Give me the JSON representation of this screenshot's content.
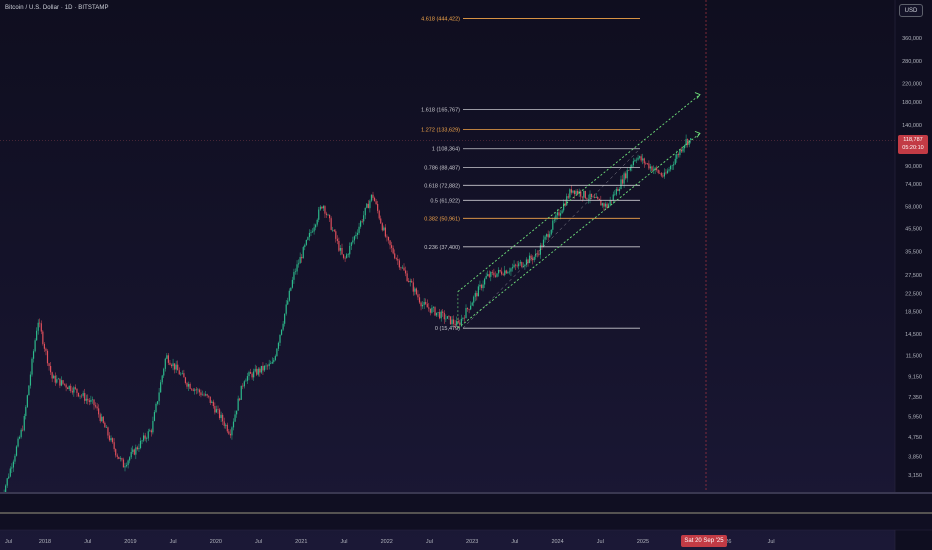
{
  "header": {
    "symbol_title": "Bitcoin / U.S. Dollar · 1D · BITSTAMP",
    "currency": "USD"
  },
  "price_badge": {
    "price": "118,787",
    "countdown": "05:20:10"
  },
  "date_badge": "Sat 20 Sep '25",
  "colors": {
    "fib_orange": "#f4a64a",
    "fib_white": "#c9c9cf",
    "channel_green": "#6fe07a",
    "candle_up": "#2dba8c",
    "candle_down": "#e0505c",
    "price_line": "#7a3a48"
  },
  "chart_data": {
    "type": "candlestick",
    "symbol": "Bitcoin / U.S. Dollar",
    "interval": "1D",
    "exchange": "BITSTAMP",
    "scale": "log",
    "y_ticks": [
      "360,000",
      "280,000",
      "220,000",
      "180,000",
      "140,000",
      "90,000",
      "74,000",
      "58,000",
      "45,500",
      "35,500",
      "27,500",
      "22,500",
      "18,500",
      "14,500",
      "11,500",
      "9,150",
      "7,350",
      "5,950",
      "4,750",
      "3,850",
      "3,150"
    ],
    "x_ticks": [
      "Jul",
      "2018",
      "Jul",
      "2019",
      "Jul",
      "2020",
      "Jul",
      "2021",
      "Jul",
      "2022",
      "Jul",
      "2023",
      "Jul",
      "2024",
      "Jul",
      "2025",
      "Jul",
      "26",
      "Jul"
    ],
    "last_price": 118787,
    "approx_closes": [
      [
        "2017-07",
        2500
      ],
      [
        "2017-10",
        5500
      ],
      [
        "2017-12",
        17000
      ],
      [
        "2018-02",
        9000
      ],
      [
        "2018-05",
        8000
      ],
      [
        "2018-08",
        6700
      ],
      [
        "2018-11",
        4000
      ],
      [
        "2018-12",
        3500
      ],
      [
        "2019-04",
        5200
      ],
      [
        "2019-06",
        11500
      ],
      [
        "2019-09",
        8500
      ],
      [
        "2019-12",
        7200
      ],
      [
        "2020-03",
        5000
      ],
      [
        "2020-05",
        9000
      ],
      [
        "2020-09",
        10500
      ],
      [
        "2020-12",
        28000
      ],
      [
        "2021-04",
        60000
      ],
      [
        "2021-07",
        32000
      ],
      [
        "2021-11",
        66000
      ],
      [
        "2022-01",
        40000
      ],
      [
        "2022-06",
        20000
      ],
      [
        "2022-11",
        16000
      ],
      [
        "2023-03",
        27000
      ],
      [
        "2023-07",
        30000
      ],
      [
        "2023-10",
        34000
      ],
      [
        "2024-03",
        70000
      ],
      [
        "2024-08",
        58000
      ],
      [
        "2024-12",
        100000
      ],
      [
        "2025-04",
        80000
      ],
      [
        "2025-07",
        118000
      ]
    ],
    "fib_levels": [
      {
        "label": "4.618 (444,422)",
        "price": 444422,
        "color": "orange"
      },
      {
        "label": "1.618 (165,767)",
        "price": 165767,
        "color": "white"
      },
      {
        "label": "1.272 (133,629)",
        "price": 133629,
        "color": "orange"
      },
      {
        "label": "1 (108,364)",
        "price": 108364,
        "color": "white"
      },
      {
        "label": "0.786 (88,487)",
        "price": 88487,
        "color": "white"
      },
      {
        "label": "0.618 (72,882)",
        "price": 72882,
        "color": "white"
      },
      {
        "label": "0.5 (61,922)",
        "price": 61922,
        "color": "white"
      },
      {
        "label": "0.382 (50,961)",
        "price": 50961,
        "color": "orange"
      },
      {
        "label": "0.236 (37,400)",
        "price": 37400,
        "color": "white"
      },
      {
        "label": "0 (15,479)",
        "price": 15479,
        "color": "white"
      }
    ],
    "channel": {
      "lower_start": [
        "2022-11",
        15479
      ],
      "lower_end": [
        "2025-09",
        128000
      ],
      "upper_start": [
        "2022-11",
        23000
      ],
      "upper_end": [
        "2025-09",
        195000
      ]
    }
  }
}
